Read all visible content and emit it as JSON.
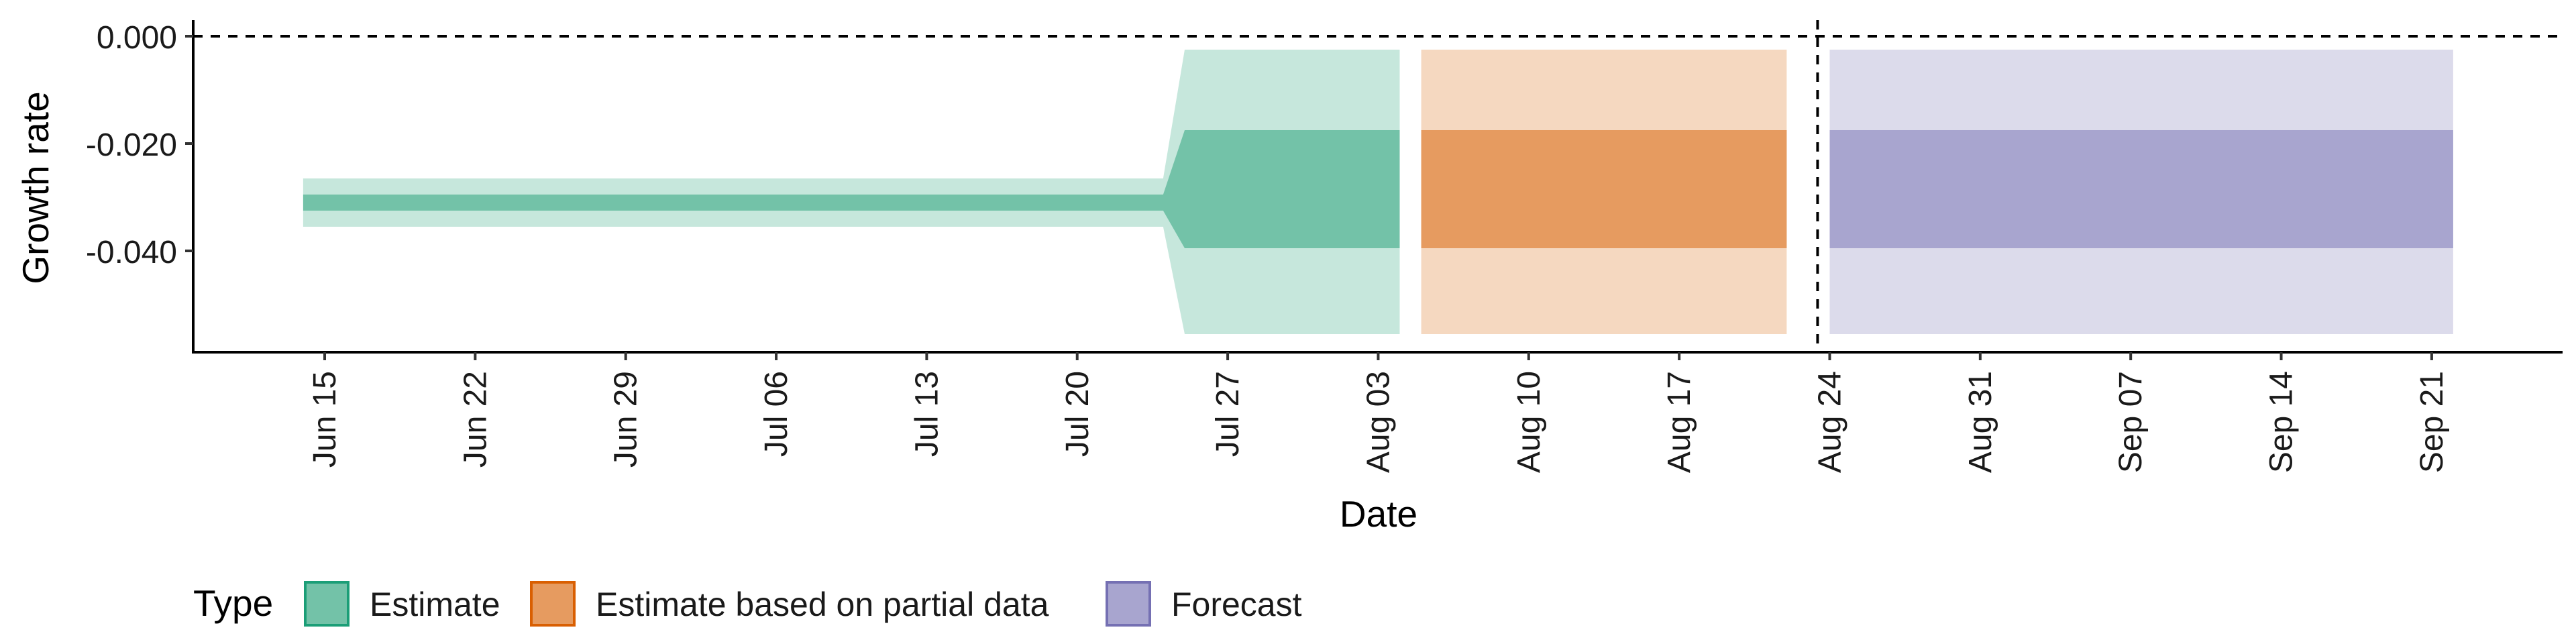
{
  "chart_data": {
    "type": "area",
    "xlabel": "Date",
    "ylabel": "Growth rate",
    "x_ticks": [
      "Jun 15",
      "Jun 22",
      "Jun 29",
      "Jul 06",
      "Jul 13",
      "Jul 20",
      "Jul 27",
      "Aug 03",
      "Aug 10",
      "Aug 17",
      "Aug 24",
      "Aug 31",
      "Sep 07",
      "Sep 14",
      "Sep 21"
    ],
    "y_ticks": [
      "0.000",
      "-0.020",
      "-0.040"
    ],
    "ylim": [
      -0.057,
      0.002
    ],
    "xlim": [
      "2020-06-08",
      "2020-09-28"
    ],
    "reference_lines": [
      {
        "axis": "y",
        "value": 0.0,
        "style": "dashed"
      },
      {
        "axis": "x",
        "value": "2020-08-23",
        "style": "dashed"
      }
    ],
    "legend": {
      "title": "Type",
      "position": "bottom-left",
      "items": [
        {
          "label": "Estimate",
          "color": "#73c2a8",
          "border": "#1b9e77"
        },
        {
          "label": "Estimate based on partial data",
          "color": "#e69b60",
          "border": "#d95f02"
        },
        {
          "label": "Forecast",
          "color": "#a8a5cf",
          "border": "#7570b3"
        }
      ]
    },
    "series": [
      {
        "name": "Estimate",
        "inner_color": "#73c2a8",
        "outer_color": "#c6e7dc",
        "points": [
          {
            "x": "2020-06-14",
            "lower_90": -0.0355,
            "lower_50": -0.0325,
            "upper_50": -0.0295,
            "upper_90": -0.0265
          },
          {
            "x": "2020-07-24",
            "lower_90": -0.0355,
            "lower_50": -0.0325,
            "upper_50": -0.0295,
            "upper_90": -0.0265
          },
          {
            "x": "2020-07-25",
            "lower_90": -0.0555,
            "lower_50": -0.0395,
            "upper_50": -0.0175,
            "upper_90": -0.0025
          },
          {
            "x": "2020-08-04",
            "lower_90": -0.0555,
            "lower_50": -0.0395,
            "upper_50": -0.0175,
            "upper_90": -0.0025
          }
        ]
      },
      {
        "name": "Estimate based on partial data",
        "inner_color": "#e69b60",
        "outer_color": "#f5d8c0",
        "points": [
          {
            "x": "2020-08-05",
            "lower_90": -0.0555,
            "lower_50": -0.0395,
            "upper_50": -0.0175,
            "upper_90": -0.0025
          },
          {
            "x": "2020-08-22",
            "lower_90": -0.0555,
            "lower_50": -0.0395,
            "upper_50": -0.0175,
            "upper_90": -0.0025
          }
        ]
      },
      {
        "name": "Forecast",
        "inner_color": "#a8a5cf",
        "outer_color": "#dcdbeb",
        "points": [
          {
            "x": "2020-08-24",
            "lower_90": -0.0555,
            "lower_50": -0.0395,
            "upper_50": -0.0175,
            "upper_90": -0.0025
          },
          {
            "x": "2020-09-22",
            "lower_90": -0.0555,
            "lower_50": -0.0395,
            "upper_50": -0.0175,
            "upper_90": -0.0025
          }
        ]
      }
    ]
  }
}
